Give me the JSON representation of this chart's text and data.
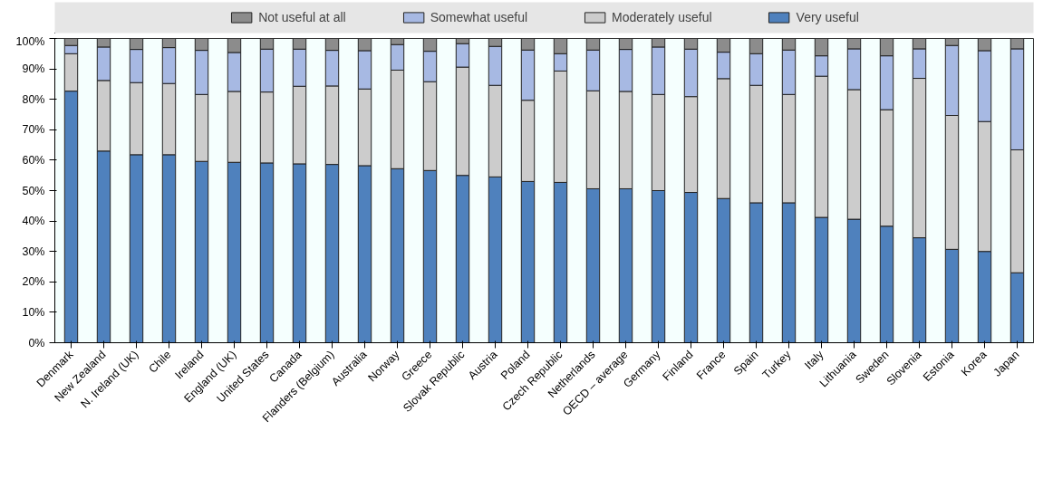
{
  "chart_data": {
    "type": "bar",
    "stacked": true,
    "categories": [
      "Denmark",
      "New Zealand",
      "N. Ireland (UK)",
      "Chile",
      "Ireland",
      "England (UK)",
      "United States",
      "Canada",
      "Flanders (Belgium)",
      "Australia",
      "Norway",
      "Greece",
      "Slovak Republic",
      "Austria",
      "Poland",
      "Czech Republic",
      "Netherlands",
      "OECD – average",
      "Germany",
      "Finland",
      "France",
      "Spain",
      "Turkey",
      "Italy",
      "Lithuania",
      "Sweden",
      "Slovenia",
      "Estonia",
      "Korea",
      "Japan"
    ],
    "series": [
      {
        "name": "Very useful",
        "color": "#4f81bd",
        "values": [
          82.7,
          63,
          61.8,
          61.8,
          59.6,
          59.3,
          59.1,
          58.8,
          58.6,
          58.2,
          57.2,
          56.6,
          55,
          54.5,
          53,
          52.7,
          50.6,
          50.6,
          50,
          49.4,
          47.4,
          46,
          46,
          41.2,
          40.6,
          38.3,
          34.5,
          30.7,
          30,
          23
        ]
      },
      {
        "name": "Moderately useful",
        "color": "#cccccc",
        "values": [
          12.3,
          23.2,
          23.7,
          23.4,
          22,
          23.3,
          23.3,
          25.5,
          25.8,
          25.2,
          32.4,
          29.2,
          35.6,
          30.1,
          26.7,
          36.6,
          32.2,
          32,
          31.6,
          31.5,
          39.4,
          38.6,
          35.6,
          46.4,
          42.6,
          38.3,
          52.4,
          44,
          42.7,
          40.4
        ]
      },
      {
        "name": "Somewhat useful",
        "color": "#a7b9e3",
        "values": [
          2.7,
          11,
          10.9,
          11.8,
          14.5,
          12.8,
          14.1,
          12.2,
          11.7,
          12.6,
          8.4,
          10,
          7.7,
          12.8,
          16.5,
          5.7,
          13.4,
          13.8,
          15.6,
          15.6,
          8.7,
          10.4,
          14.6,
          6.7,
          13.4,
          17.7,
          9.7,
          23,
          23.3,
          33.2
        ]
      },
      {
        "name": "Not useful at all",
        "color": "#8c8c8c",
        "values": [
          2.3,
          2.8,
          3.6,
          3,
          3.9,
          4.6,
          3.5,
          3.5,
          3.9,
          4,
          2,
          4.2,
          1.7,
          2.6,
          3.8,
          5,
          3.8,
          3.6,
          2.8,
          3.5,
          4.5,
          5,
          3.8,
          5.7,
          3.4,
          5.7,
          3.4,
          2.3,
          4,
          3.4
        ]
      }
    ],
    "ylim": [
      0,
      100
    ],
    "yticks": [
      {
        "value": 0,
        "label": "0%"
      },
      {
        "value": 10,
        "label": "10%"
      },
      {
        "value": 20,
        "label": "20%"
      },
      {
        "value": 30,
        "label": "30%"
      },
      {
        "value": 40,
        "label": "40%"
      },
      {
        "value": 50,
        "label": "50%"
      },
      {
        "value": 60,
        "label": "60%"
      },
      {
        "value": 70,
        "label": "70%"
      },
      {
        "value": 80,
        "label": "80%"
      },
      {
        "value": 90,
        "label": "90%"
      },
      {
        "value": 100,
        "label": "100%"
      }
    ],
    "legend": "top"
  }
}
